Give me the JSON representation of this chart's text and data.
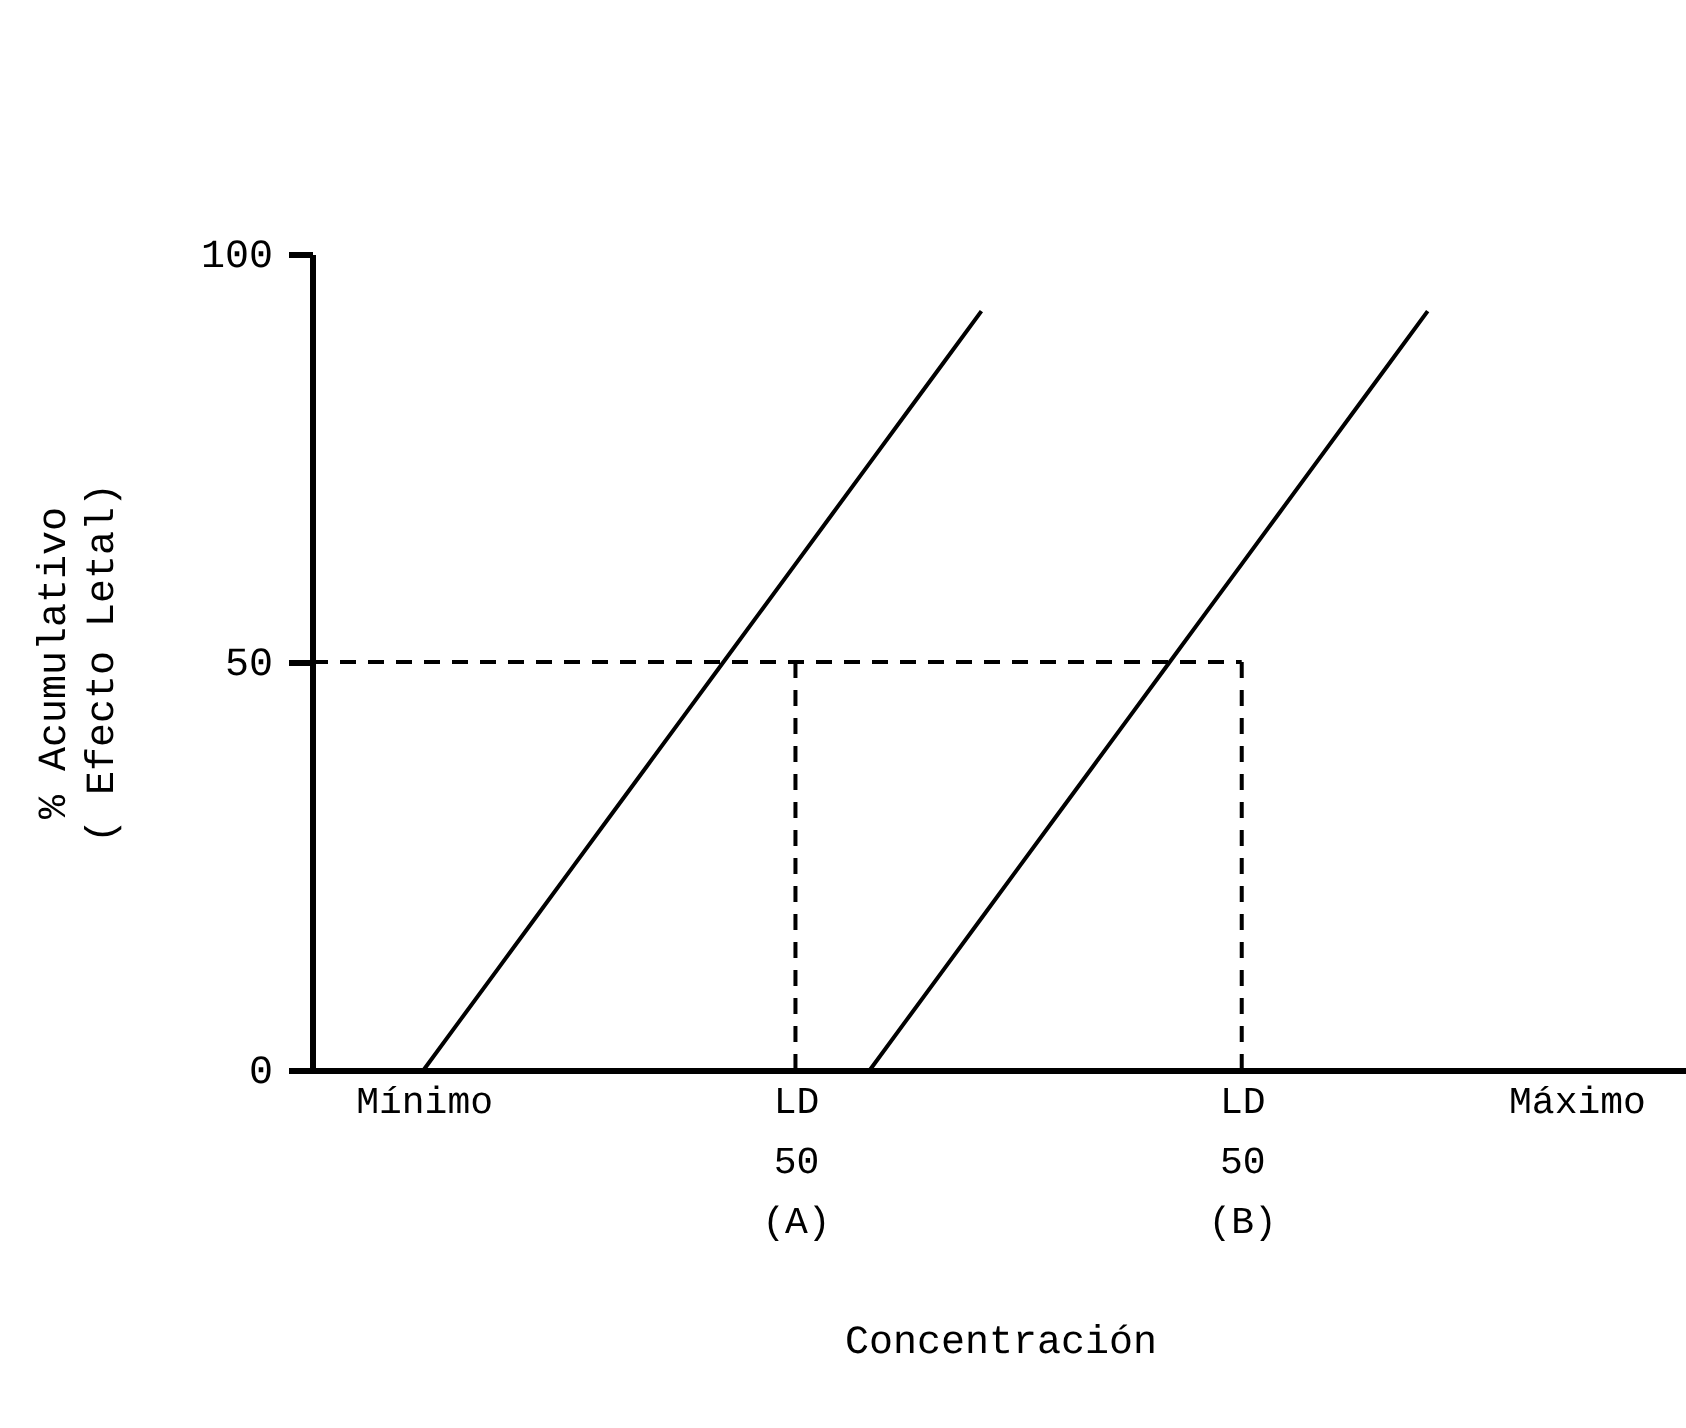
{
  "chart_data": {
    "type": "line",
    "xlabel": "Concentración",
    "ylabel": "% Acumulativo\n( Efecto Letal)",
    "categories": [
      null,
      null,
      null,
      "Mínimo",
      null,
      null,
      null,
      null,
      null,
      null,
      null,
      null,
      null,
      "LD\n50\n(A)",
      null,
      null,
      null,
      null,
      null,
      null,
      null,
      null,
      null,
      null,
      null,
      "LD\n50\n(B)",
      null,
      null,
      null,
      null,
      null,
      null,
      null,
      null,
      "Máximo",
      null,
      null,
      null
    ],
    "ylim": [
      0,
      100
    ],
    "yticks": [
      0,
      50,
      100
    ],
    "grid": false,
    "marker": "none",
    "series": [
      {
        "color": "#000000",
        "line_style": "solid",
        "values": [
          null,
          null,
          null,
          0,
          6.2,
          12.4,
          18.6,
          24.8,
          31,
          37.2,
          43.4,
          49.6,
          55.8,
          62,
          68.2,
          74.4,
          80.6,
          86.8,
          93,
          null,
          null,
          null,
          null,
          null,
          null,
          null,
          null,
          null,
          null,
          null,
          null,
          null,
          null,
          null,
          null,
          null,
          null,
          null
        ]
      },
      {
        "color": "#000000",
        "line_style": "solid",
        "values": [
          null,
          null,
          null,
          null,
          null,
          null,
          null,
          null,
          null,
          null,
          null,
          null,
          null,
          null,
          null,
          0,
          6.2,
          12.4,
          18.6,
          24.8,
          31,
          37.2,
          43.4,
          49.6,
          55.8,
          62,
          68.2,
          74.4,
          80.6,
          86.8,
          93,
          null,
          null,
          null,
          null,
          null,
          null,
          null
        ]
      },
      {
        "color": "#000000",
        "line_style": "dashed",
        "values": [
          50,
          50,
          50,
          50,
          50,
          50,
          50,
          50,
          50,
          50,
          50,
          50,
          50,
          50,
          50,
          50,
          50,
          50,
          50,
          50,
          50,
          50,
          50,
          50,
          50,
          50,
          null,
          null,
          null,
          null,
          null,
          null,
          null,
          null,
          null,
          null,
          null,
          null
        ]
      },
      {
        "color": "#000000",
        "line_style": "dashed",
        "x": [
          "LD\n50\n(A)",
          "LD\n50\n(A)"
        ],
        "values": [
          0,
          50
        ]
      },
      {
        "color": "#000000",
        "line_style": "dashed",
        "x": [
          "LD\n50\n(B)",
          "LD\n50\n(B)"
        ],
        "values": [
          0,
          50
        ]
      }
    ]
  }
}
